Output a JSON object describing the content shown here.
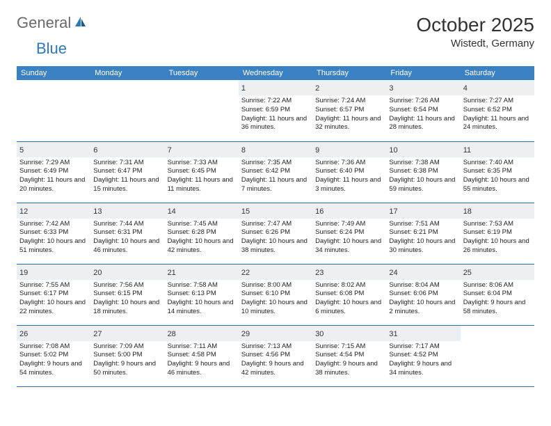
{
  "logo": {
    "text1": "General",
    "text2": "Blue"
  },
  "title": "October 2025",
  "location": "Wistedt, Germany",
  "dayHeaders": [
    "Sunday",
    "Monday",
    "Tuesday",
    "Wednesday",
    "Thursday",
    "Friday",
    "Saturday"
  ],
  "colors": {
    "header_bg": "#3a81c4",
    "header_text": "#ffffff",
    "row_border": "#2a6aa8",
    "daynum_bg": "#edf0f2",
    "logo_gray": "#6a6a6a",
    "logo_blue": "#2a79bd"
  },
  "grid": {
    "cols": 7,
    "rows": 5,
    "first_day_col": 3
  },
  "days": [
    {
      "n": "1",
      "sr": "7:22 AM",
      "ss": "6:59 PM",
      "dl": "11 hours and 36 minutes."
    },
    {
      "n": "2",
      "sr": "7:24 AM",
      "ss": "6:57 PM",
      "dl": "11 hours and 32 minutes."
    },
    {
      "n": "3",
      "sr": "7:26 AM",
      "ss": "6:54 PM",
      "dl": "11 hours and 28 minutes."
    },
    {
      "n": "4",
      "sr": "7:27 AM",
      "ss": "6:52 PM",
      "dl": "11 hours and 24 minutes."
    },
    {
      "n": "5",
      "sr": "7:29 AM",
      "ss": "6:49 PM",
      "dl": "11 hours and 20 minutes."
    },
    {
      "n": "6",
      "sr": "7:31 AM",
      "ss": "6:47 PM",
      "dl": "11 hours and 15 minutes."
    },
    {
      "n": "7",
      "sr": "7:33 AM",
      "ss": "6:45 PM",
      "dl": "11 hours and 11 minutes."
    },
    {
      "n": "8",
      "sr": "7:35 AM",
      "ss": "6:42 PM",
      "dl": "11 hours and 7 minutes."
    },
    {
      "n": "9",
      "sr": "7:36 AM",
      "ss": "6:40 PM",
      "dl": "11 hours and 3 minutes."
    },
    {
      "n": "10",
      "sr": "7:38 AM",
      "ss": "6:38 PM",
      "dl": "10 hours and 59 minutes."
    },
    {
      "n": "11",
      "sr": "7:40 AM",
      "ss": "6:35 PM",
      "dl": "10 hours and 55 minutes."
    },
    {
      "n": "12",
      "sr": "7:42 AM",
      "ss": "6:33 PM",
      "dl": "10 hours and 51 minutes."
    },
    {
      "n": "13",
      "sr": "7:44 AM",
      "ss": "6:31 PM",
      "dl": "10 hours and 46 minutes."
    },
    {
      "n": "14",
      "sr": "7:45 AM",
      "ss": "6:28 PM",
      "dl": "10 hours and 42 minutes."
    },
    {
      "n": "15",
      "sr": "7:47 AM",
      "ss": "6:26 PM",
      "dl": "10 hours and 38 minutes."
    },
    {
      "n": "16",
      "sr": "7:49 AM",
      "ss": "6:24 PM",
      "dl": "10 hours and 34 minutes."
    },
    {
      "n": "17",
      "sr": "7:51 AM",
      "ss": "6:21 PM",
      "dl": "10 hours and 30 minutes."
    },
    {
      "n": "18",
      "sr": "7:53 AM",
      "ss": "6:19 PM",
      "dl": "10 hours and 26 minutes."
    },
    {
      "n": "19",
      "sr": "7:55 AM",
      "ss": "6:17 PM",
      "dl": "10 hours and 22 minutes."
    },
    {
      "n": "20",
      "sr": "7:56 AM",
      "ss": "6:15 PM",
      "dl": "10 hours and 18 minutes."
    },
    {
      "n": "21",
      "sr": "7:58 AM",
      "ss": "6:13 PM",
      "dl": "10 hours and 14 minutes."
    },
    {
      "n": "22",
      "sr": "8:00 AM",
      "ss": "6:10 PM",
      "dl": "10 hours and 10 minutes."
    },
    {
      "n": "23",
      "sr": "8:02 AM",
      "ss": "6:08 PM",
      "dl": "10 hours and 6 minutes."
    },
    {
      "n": "24",
      "sr": "8:04 AM",
      "ss": "6:06 PM",
      "dl": "10 hours and 2 minutes."
    },
    {
      "n": "25",
      "sr": "8:06 AM",
      "ss": "6:04 PM",
      "dl": "9 hours and 58 minutes."
    },
    {
      "n": "26",
      "sr": "7:08 AM",
      "ss": "5:02 PM",
      "dl": "9 hours and 54 minutes."
    },
    {
      "n": "27",
      "sr": "7:09 AM",
      "ss": "5:00 PM",
      "dl": "9 hours and 50 minutes."
    },
    {
      "n": "28",
      "sr": "7:11 AM",
      "ss": "4:58 PM",
      "dl": "9 hours and 46 minutes."
    },
    {
      "n": "29",
      "sr": "7:13 AM",
      "ss": "4:56 PM",
      "dl": "9 hours and 42 minutes."
    },
    {
      "n": "30",
      "sr": "7:15 AM",
      "ss": "4:54 PM",
      "dl": "9 hours and 38 minutes."
    },
    {
      "n": "31",
      "sr": "7:17 AM",
      "ss": "4:52 PM",
      "dl": "9 hours and 34 minutes."
    }
  ],
  "labels": {
    "sunrise": "Sunrise:",
    "sunset": "Sunset:",
    "daylight": "Daylight:"
  }
}
